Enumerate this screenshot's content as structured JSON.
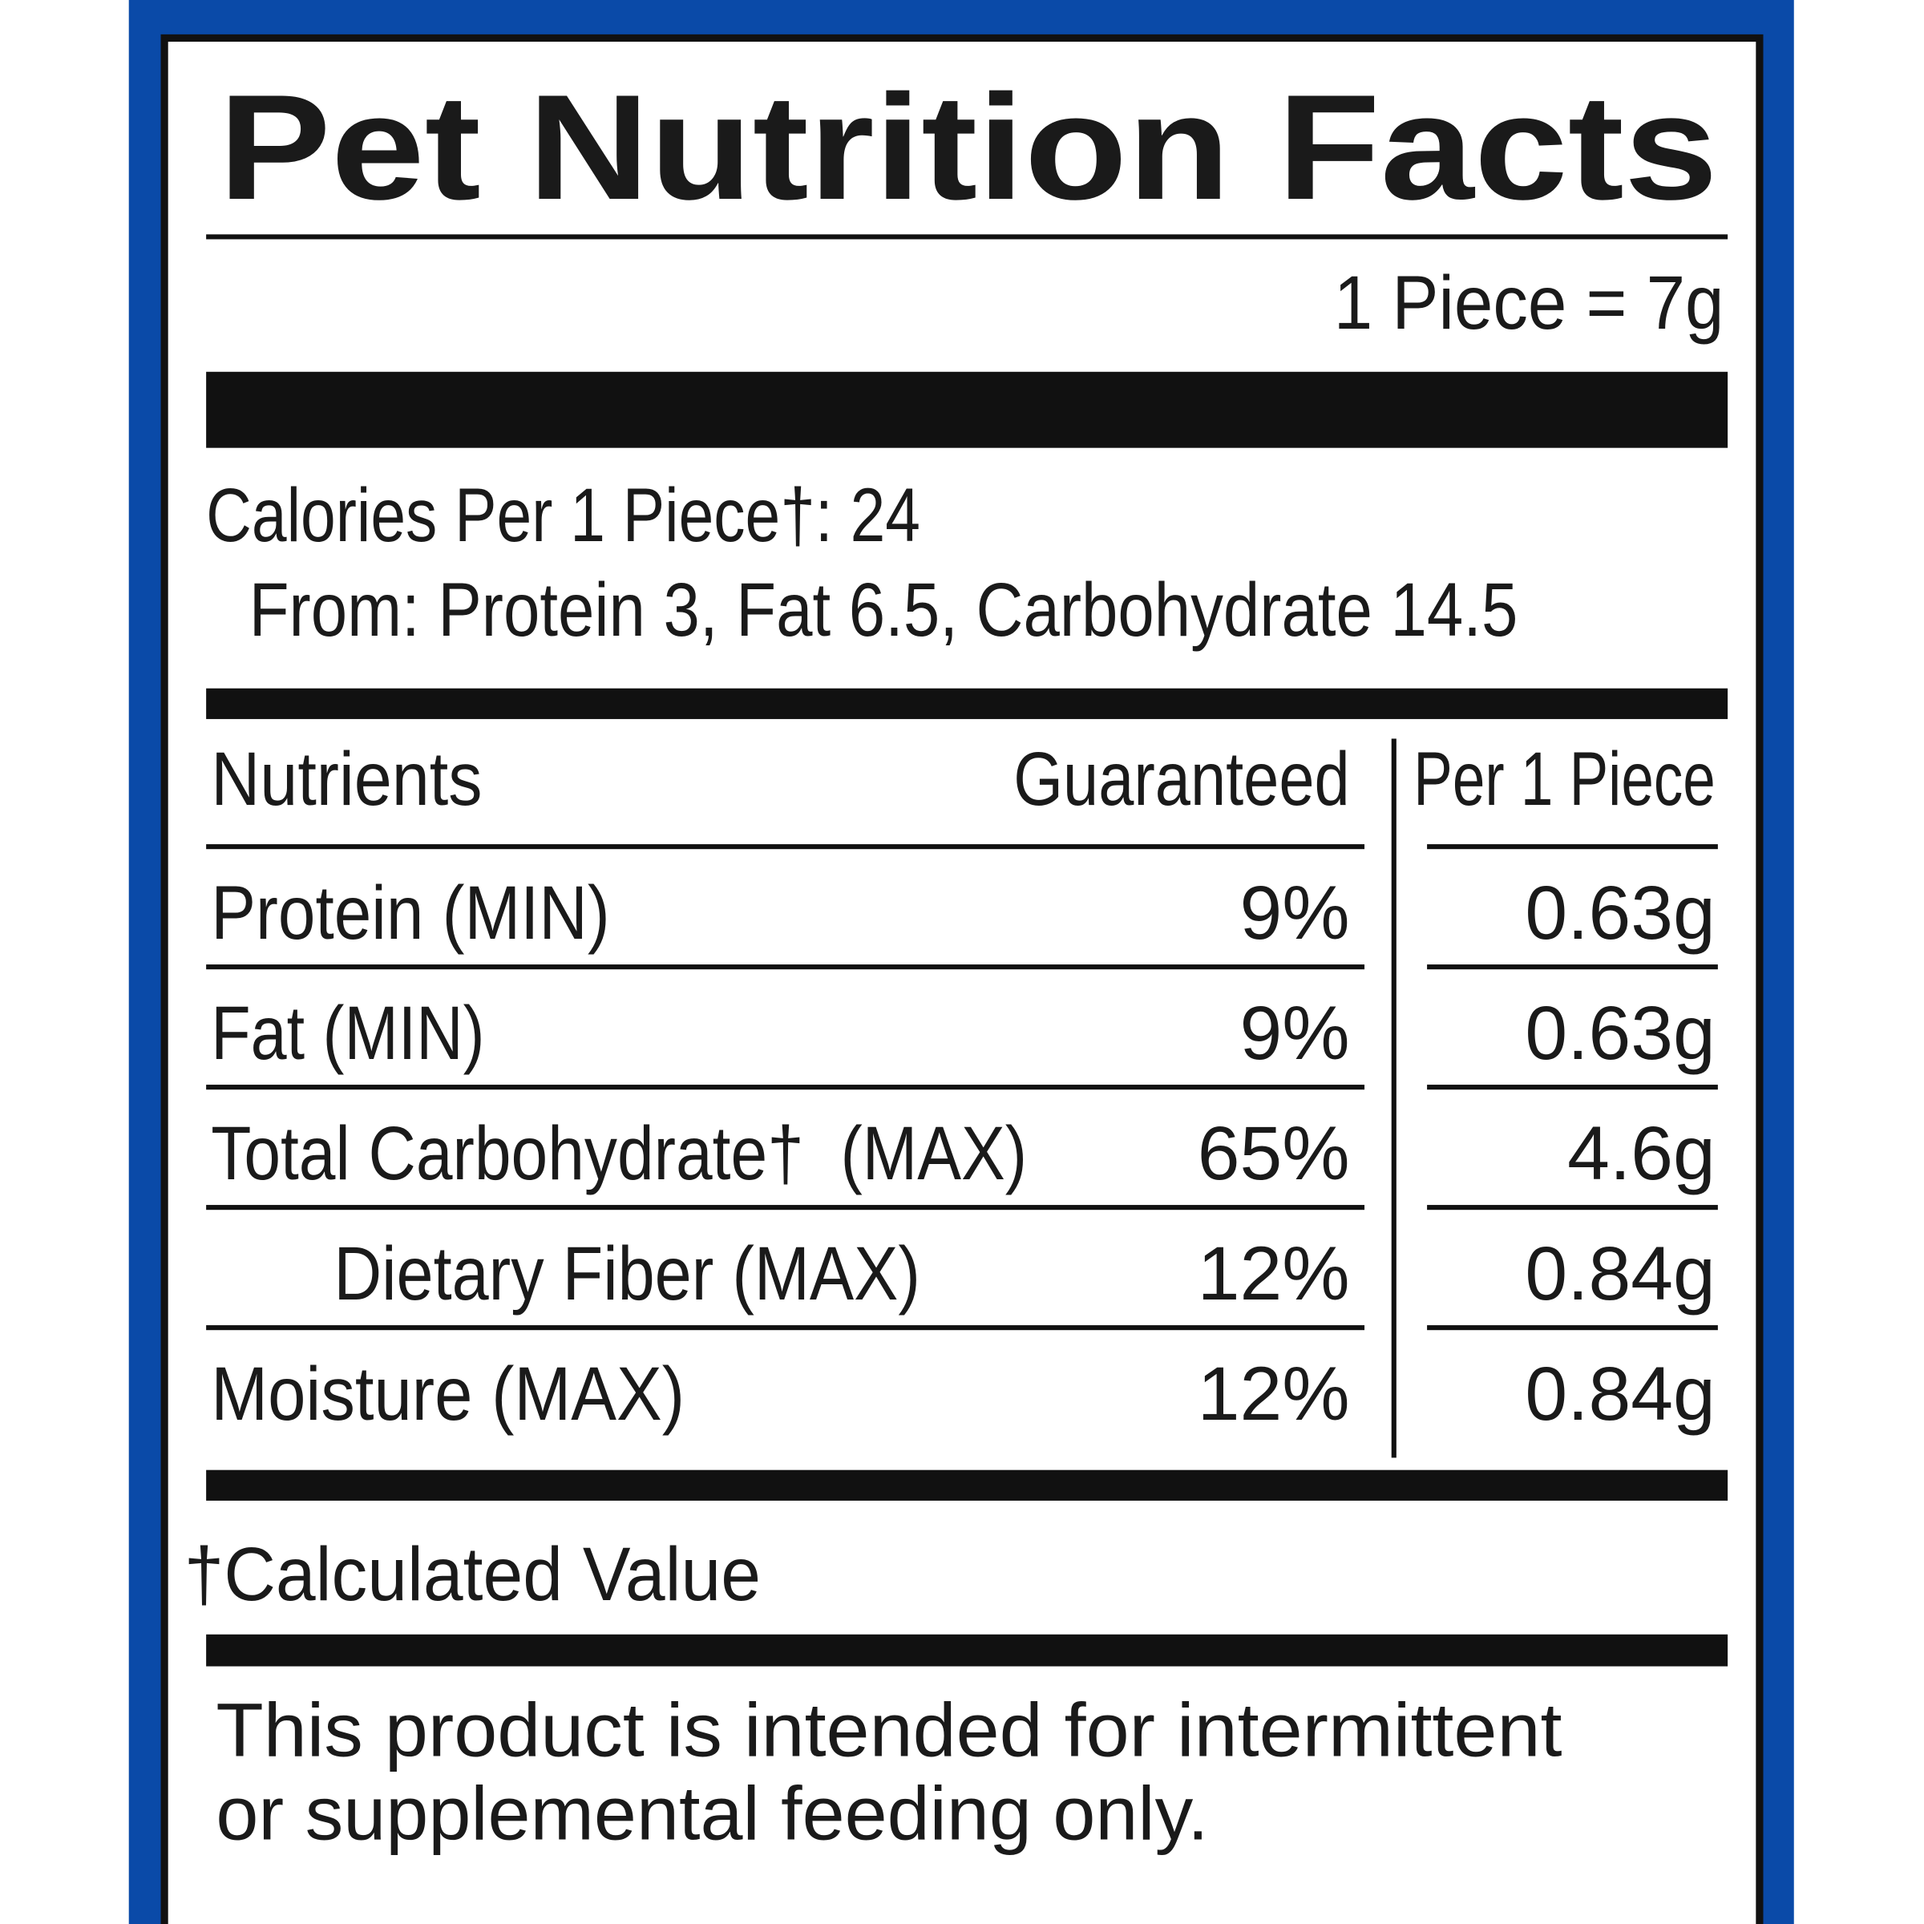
{
  "title": "Pet Nutrition Facts",
  "serving": "1 Piece = 7g",
  "calories": {
    "line": "Calories Per 1 Piece†: 24",
    "from": "From: Protein 3, Fat 6.5, Carbohydrate 14.5"
  },
  "table": {
    "headers": [
      "Nutrients",
      "Guaranteed",
      "Per 1 Piece"
    ],
    "rows": [
      [
        "Protein (MIN)",
        "9%",
        "0.63g"
      ],
      [
        "Fat (MIN)",
        "9%",
        "0.63g"
      ],
      [
        "Total Carbohydrate†  (MAX)",
        "65%",
        "4.6g"
      ],
      [
        "Dietary Fiber (MAX)",
        "12%",
        "0.84g"
      ],
      [
        "Moisture (MAX)",
        "12%",
        "0.84g"
      ]
    ]
  },
  "footnote": "†Calculated Value",
  "statement": [
    "This product is intended for intermittent",
    "or supplemental feeding only."
  ]
}
